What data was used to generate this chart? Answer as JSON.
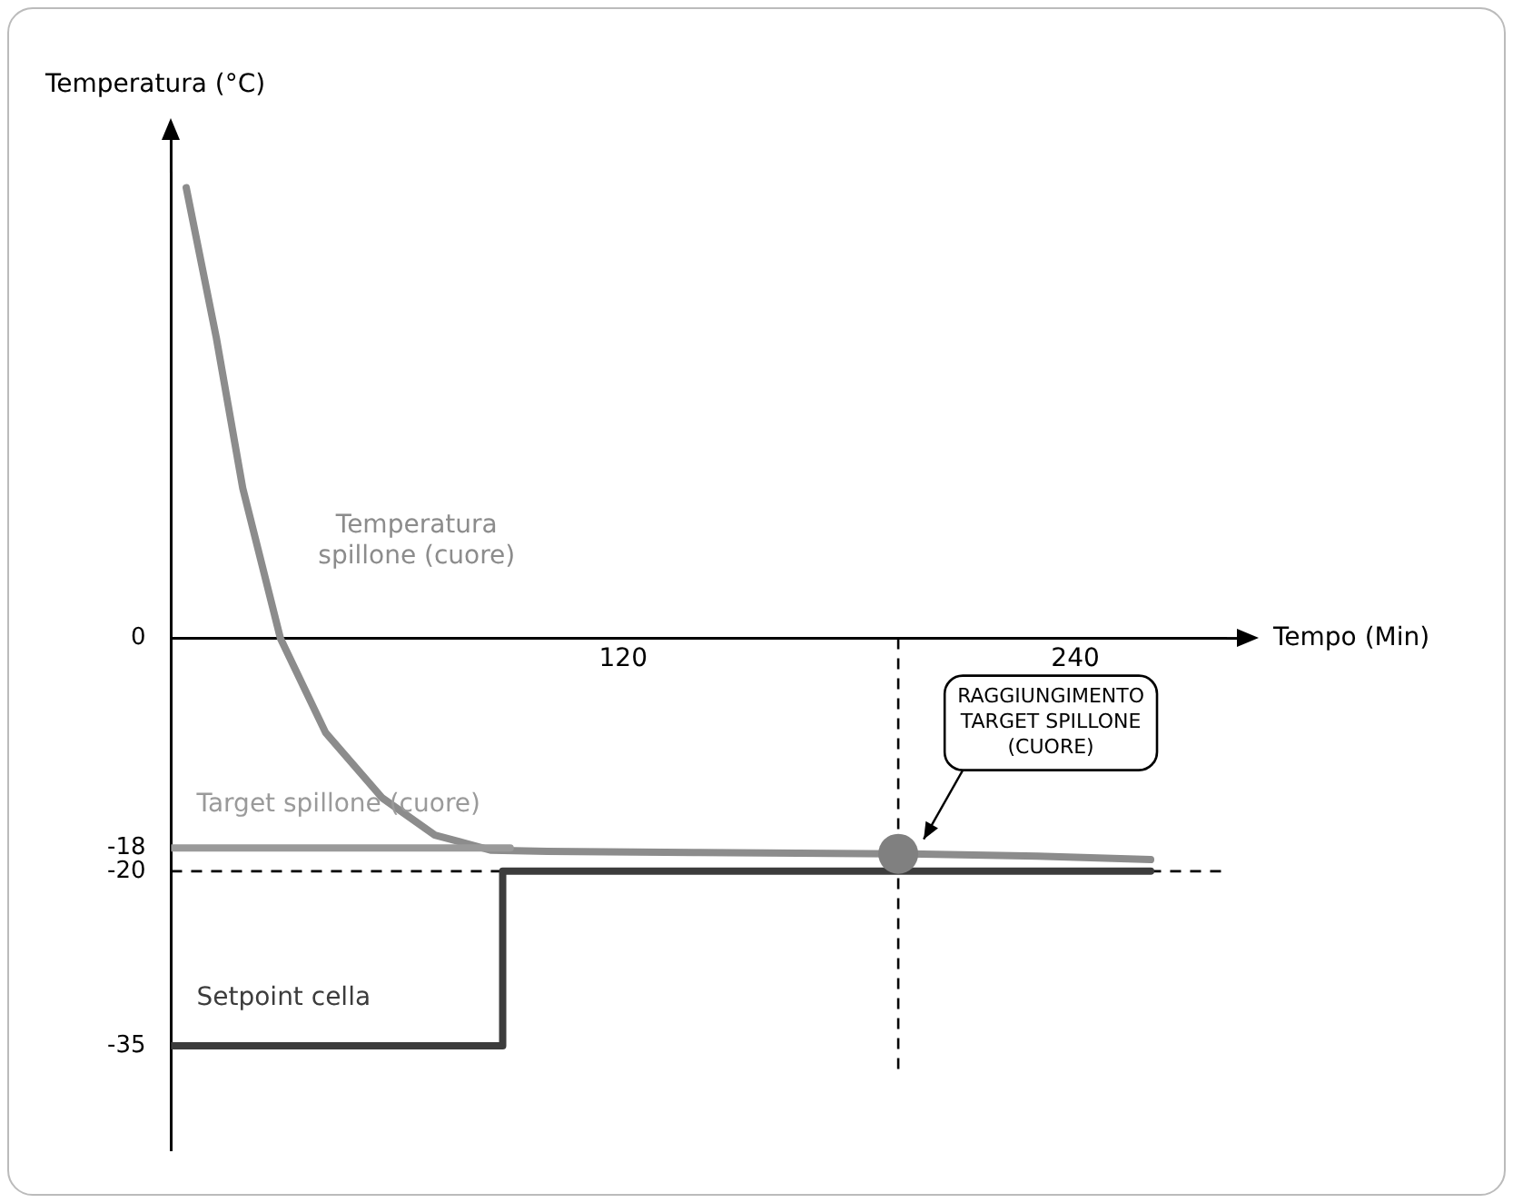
{
  "chart_data": {
    "type": "line",
    "xlabel": "Tempo (Min)",
    "ylabel": "Temperatura (°C)",
    "xlim": [
      0,
      280
    ],
    "xticks": [
      120,
      240
    ],
    "ylim": [
      -44,
      40
    ],
    "yticks": [
      0,
      -18,
      -20,
      -35
    ],
    "grid": false,
    "legend": false,
    "marker": "none",
    "series": [
      {
        "name": "Target spillone (cuore)",
        "color": "#9a9a9a",
        "x": [
          0,
          90
        ],
        "values": [
          -18,
          -18
        ]
      },
      {
        "name": "Temperatura spillone (cuore)",
        "color": "#8c8c8c",
        "x": [
          4,
          12,
          19,
          29,
          41,
          56,
          70,
          85,
          100,
          140,
          193,
          230,
          260
        ],
        "values": [
          38.7,
          25.8,
          12.9,
          0,
          -8.1,
          -13.7,
          -16.9,
          -18.2,
          -18.3,
          -18.4,
          -18.5,
          -18.7,
          -19
        ]
      },
      {
        "name": "Setpoint cella",
        "color": "#3c3c3c",
        "x": [
          0,
          88,
          88,
          260
        ],
        "values": [
          -35,
          -35,
          -20,
          -20
        ]
      },
      {
        "type": "scatter",
        "marker": "circle",
        "color": "#808080",
        "x": [
          193
        ],
        "values": [
          -18.5
        ]
      }
    ],
    "ref_lines": [
      {
        "axis": "y",
        "value": -20,
        "line_style": "dashed",
        "color": "#000000"
      },
      {
        "axis": "x",
        "value": 193,
        "line_style": "dashed",
        "color": "#000000"
      }
    ],
    "annotations": [
      "RAGGIUNGIMENTO TARGET SPILLONE (CUORE)"
    ]
  }
}
